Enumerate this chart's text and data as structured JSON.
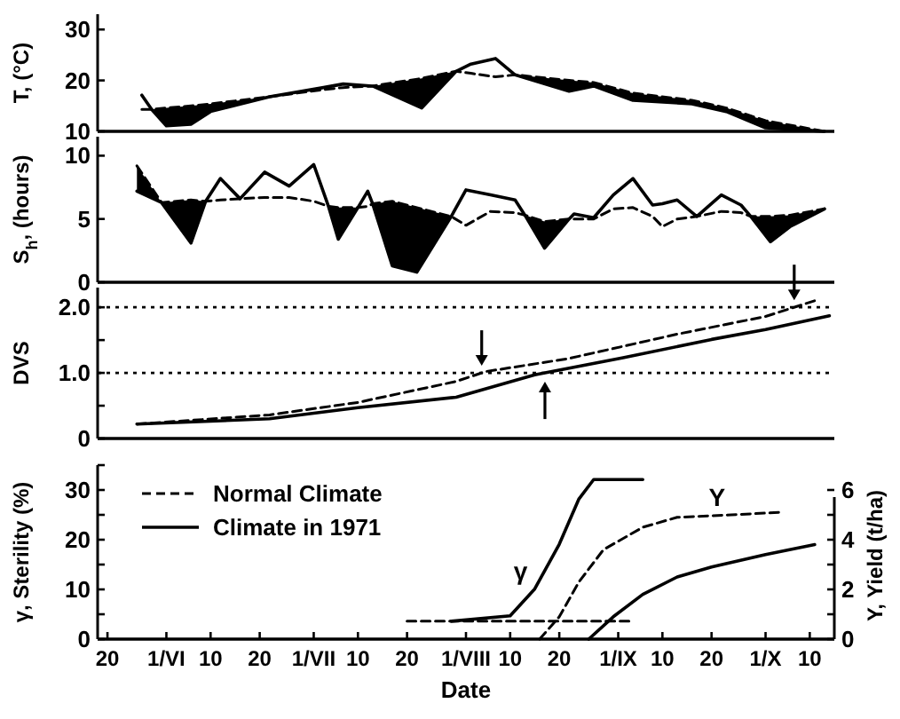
{
  "chart_data": [
    {
      "type": "line",
      "ylabel": "T, (°C)",
      "xlim": [
        "--05-18",
        "--10-15"
      ],
      "ylim": [
        10,
        33
      ],
      "yticks": [
        10,
        20,
        30
      ],
      "tick_labels": "y",
      "x": [
        "--05-27",
        "--05-29",
        "--06-01",
        "--06-06",
        "--06-10",
        "--06-22",
        "--07-03",
        "--07-07",
        "--07-13",
        "--07-23",
        "--07-30",
        "--08-02",
        "--08-07",
        "--08-11",
        "--08-22",
        "--08-27",
        "--09-04",
        "--09-16",
        "--09-23",
        "--10-01",
        "--10-13"
      ],
      "series": [
        {
          "color": "#000000",
          "line_style": "dashed",
          "values": [
            14.3,
            14.3,
            14.6,
            15.0,
            15.4,
            16.8,
            18.2,
            18.6,
            18.9,
            20.4,
            21.8,
            21.4,
            20.7,
            21.1,
            20.0,
            19.6,
            17.5,
            16.1,
            14.6,
            12.1,
            10.0
          ]
        },
        {
          "color": "#000000",
          "line_style": "solid",
          "values": [
            17.1,
            14.3,
            11.1,
            11.4,
            13.9,
            16.8,
            18.6,
            19.3,
            18.9,
            14.6,
            21.8,
            23.2,
            24.3,
            21.1,
            17.9,
            18.9,
            16.1,
            15.4,
            13.9,
            10.7,
            10.0
          ],
          "lower": [
            null,
            14.3,
            11.1,
            11.4,
            13.9,
            16.8,
            null,
            null,
            18.9,
            14.6,
            21.8,
            null,
            null,
            21.1,
            17.9,
            18.9,
            16.1,
            15.4,
            13.9,
            10.7,
            10.0
          ],
          "upper": [
            null,
            14.3,
            14.6,
            15.0,
            15.4,
            16.8,
            null,
            null,
            18.9,
            20.4,
            21.8,
            null,
            null,
            21.1,
            20.0,
            19.6,
            17.5,
            16.1,
            14.6,
            12.1,
            10.0
          ]
        }
      ]
    },
    {
      "type": "line",
      "ylabel": "S$_{h}$, (hours)",
      "xlim": [
        "--05-18",
        "--10-15"
      ],
      "ylim": [
        0,
        11.5
      ],
      "yticks": [
        0,
        5,
        10
      ],
      "tick_labels": "y",
      "x": [
        "--05-26",
        "--05-31",
        "--06-06",
        "--06-09",
        "--06-12",
        "--06-16",
        "--06-21",
        "--06-26",
        "--07-01",
        "--07-04",
        "--07-06",
        "--07-10",
        "--07-12",
        "--07-13",
        "--07-17",
        "--07-22",
        "--07-29",
        "--08-01",
        "--08-06",
        "--08-11",
        "--08-13",
        "--08-17",
        "--08-22",
        "--08-23",
        "--08-27",
        "--08-31",
        "--09-04",
        "--09-08",
        "--09-10",
        "--09-13",
        "--09-17",
        "--09-22",
        "--09-26",
        "--09-28",
        "--10-02",
        "--10-06",
        "--10-13"
      ],
      "series": [
        {
          "color": "#000000",
          "line_style": "dashed",
          "values": [
            9.2,
            6.3,
            6.5,
            6.4,
            6.5,
            6.6,
            6.7,
            6.7,
            6.4,
            6.0,
            5.9,
            5.9,
            6.0,
            6.2,
            6.4,
            5.9,
            5.2,
            4.5,
            5.6,
            5.5,
            5.3,
            4.8,
            5.0,
            5.0,
            5.0,
            5.8,
            5.9,
            5.2,
            4.4,
            5.0,
            5.2,
            5.6,
            5.5,
            5.2,
            5.2,
            5.3,
            5.8
          ]
        },
        {
          "color": "#000000",
          "line_style": "solid",
          "values": [
            7.2,
            6.3,
            3.1,
            6.4,
            8.2,
            6.6,
            8.7,
            7.6,
            9.3,
            6.0,
            3.4,
            5.9,
            7.2,
            6.2,
            1.3,
            0.8,
            5.2,
            7.3,
            6.9,
            6.5,
            5.3,
            2.7,
            5.0,
            5.4,
            5.1,
            6.9,
            8.2,
            6.1,
            6.2,
            6.5,
            5.2,
            6.9,
            6.1,
            5.2,
            3.2,
            4.4,
            5.8
          ],
          "lower": [
            7.2,
            6.3,
            3.1,
            6.4,
            null,
            null,
            null,
            null,
            null,
            6.0,
            3.4,
            5.9,
            null,
            6.2,
            1.3,
            0.8,
            5.2,
            null,
            null,
            null,
            5.3,
            2.7,
            5.0,
            null,
            null,
            null,
            null,
            null,
            null,
            null,
            null,
            null,
            null,
            5.2,
            3.2,
            4.4,
            5.8
          ],
          "upper": [
            9.2,
            6.3,
            6.5,
            6.4,
            null,
            null,
            null,
            null,
            null,
            6.0,
            5.9,
            5.9,
            null,
            6.2,
            6.4,
            5.9,
            5.2,
            null,
            null,
            null,
            5.3,
            4.8,
            5.0,
            null,
            null,
            null,
            null,
            null,
            null,
            null,
            null,
            null,
            null,
            5.2,
            5.2,
            5.3,
            5.8
          ]
        }
      ]
    },
    {
      "type": "line",
      "ylabel": "DVS",
      "xlim": [
        "--05-18",
        "--10-15"
      ],
      "ylim": [
        0,
        2.3
      ],
      "yticks": [
        0,
        {
          "value": 0.5,
          "label": null
        },
        {
          "value": 1,
          "label": "1.0"
        },
        {
          "value": 1.5,
          "label": null
        },
        {
          "value": 2,
          "label": "2.0"
        }
      ],
      "tick_labels": "y",
      "ref_lines": [
        {
          "axis": "y",
          "value": 1,
          "color": "#000000",
          "line_style": "dotted"
        },
        {
          "axis": "y",
          "value": 2,
          "color": "#000000",
          "line_style": "dotted"
        }
      ],
      "series": [
        {
          "color": "#000000",
          "line_style": "dashed",
          "x": [
            "--05-26",
            "--06-22",
            "--07-10",
            "--07-30",
            "--08-05",
            "--08-22",
            "--09-13",
            "--10-01",
            "--10-11"
          ],
          "values": [
            0.22,
            0.36,
            0.55,
            0.87,
            1.02,
            1.22,
            1.59,
            1.86,
            2.1
          ]
        },
        {
          "color": "#000000",
          "line_style": "solid",
          "x": [
            "--05-26",
            "--06-22",
            "--07-10",
            "--07-30",
            "--08-15",
            "--09-02",
            "--09-20",
            "--10-01",
            "--10-14"
          ],
          "values": [
            0.22,
            0.3,
            0.47,
            0.63,
            0.97,
            1.23,
            1.51,
            1.66,
            1.87
          ]
        }
      ]
    },
    {
      "type": "line",
      "xlabel": "Date",
      "ylabel": "γ, Sterility (%)",
      "y2label": "Y, Yield (t/ha)",
      "xlim": [
        "--05-18",
        "--10-15"
      ],
      "xticks": [
        {
          "value": "--05-20",
          "label": "20"
        },
        {
          "value": "--06-01",
          "label": "1/VI"
        },
        {
          "value": "--06-10",
          "label": "10"
        },
        {
          "value": "--06-20",
          "label": "20"
        },
        {
          "value": "--07-01",
          "label": "1/VII"
        },
        {
          "value": "--07-10",
          "label": "10"
        },
        {
          "value": "--07-20",
          "label": "20"
        },
        {
          "value": "--08-01",
          "label": "1/VIII"
        },
        {
          "value": "--08-10",
          "label": "10"
        },
        {
          "value": "--08-20",
          "label": "20"
        },
        {
          "value": "--09-01",
          "label": "1/IX"
        },
        {
          "value": "--09-10",
          "label": "10"
        },
        {
          "value": "--09-20",
          "label": "20"
        },
        {
          "value": "--10-01",
          "label": "1/X"
        },
        {
          "value": "--10-10",
          "label": "10"
        }
      ],
      "ylim": [
        0,
        35
      ],
      "yticks": [
        0,
        {
          "value": 5,
          "label": null
        },
        10,
        {
          "value": 15,
          "label": null
        },
        20,
        {
          "value": 25,
          "label": null
        },
        30,
        {
          "value": 35,
          "label": null
        }
      ],
      "y2lim": [
        0,
        7
      ],
      "y2ticks": [
        0,
        {
          "value": 1,
          "label": null
        },
        2,
        {
          "value": 3,
          "label": null
        },
        4,
        {
          "value": 5,
          "label": null
        },
        6
      ],
      "legend": "top left",
      "annotations": [
        {
          "text": "γ",
          "x": "--08-15",
          "y": 10.1
        },
        {
          "text": "Y",
          "x": "--09-24",
          "y": 25
        }
      ],
      "series": [
        {
          "name": "Normal Climate",
          "color": "#000000",
          "line_style": "dashed",
          "x": [
            "--07-20",
            "--09-04"
          ],
          "values": [
            3.6,
            3.6
          ]
        },
        {
          "name": "Climate in 1971",
          "color": "#000000",
          "line_style": "solid",
          "x": [
            "--07-29",
            "--08-10",
            "--08-15",
            "--08-20",
            "--08-24",
            "--08-27",
            "--09-06"
          ],
          "values": [
            3.6,
            4.7,
            10.1,
            19.1,
            28.2,
            32.1,
            32.1
          ]
        },
        {
          "color": "#000000",
          "line_style": "dashed",
          "axis": "y2",
          "x": [
            "--08-16",
            "--08-20",
            "--08-24",
            "--08-29",
            "--09-06",
            "--09-13",
            "--09-24",
            "--10-04"
          ],
          "values": [
            0,
            0.9,
            2.3,
            3.6,
            4.5,
            4.9,
            5.0,
            5.1
          ]
        },
        {
          "color": "#000000",
          "line_style": "solid",
          "axis": "y2",
          "x": [
            "--08-26",
            "--08-31",
            "--09-06",
            "--09-13",
            "--09-20",
            "--10-01",
            "--10-11"
          ],
          "values": [
            0,
            0.9,
            1.8,
            2.5,
            2.9,
            3.4,
            3.8
          ]
        }
      ]
    }
  ]
}
